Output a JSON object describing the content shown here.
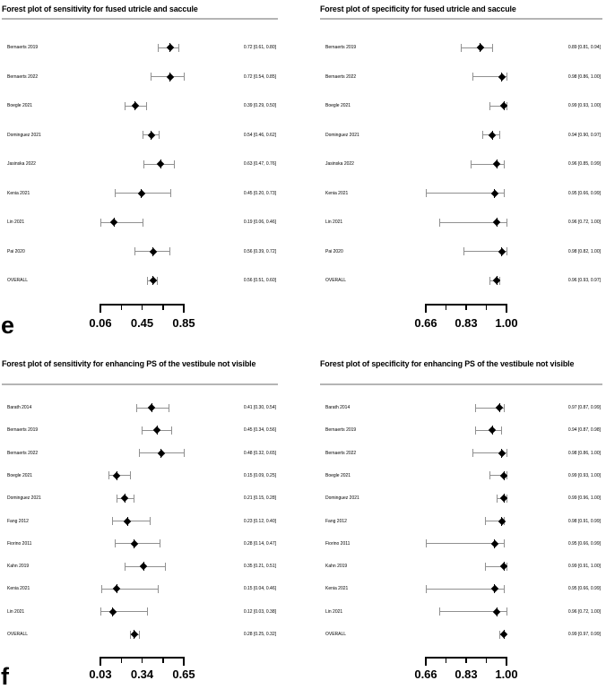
{
  "figure_labels": {
    "top": "e",
    "bottom": "f"
  },
  "colors": {
    "ci_line": "#909090",
    "marker": "#000000",
    "separator": "#b5b5b5",
    "text": "#000000",
    "background": "#ffffff"
  },
  "chart_data": [
    {
      "type": "forest",
      "title": "Forest plot of sensitivity for fused utricle and saccule",
      "subfigure_label": "e",
      "axis": {
        "min": 0.06,
        "max": 0.85,
        "tick_labels": [
          "0.06",
          "0.45",
          "0.85"
        ]
      },
      "studies": [
        {
          "label": "Bernaerts 2019",
          "estimate": 0.72,
          "ci_low": 0.61,
          "ci_high": 0.8,
          "display": "0.72 [0.61, 0.80]"
        },
        {
          "label": "Bernaerts 2022",
          "estimate": 0.72,
          "ci_low": 0.54,
          "ci_high": 0.85,
          "display": "0.72 [0.54, 0.85]"
        },
        {
          "label": "Boegle 2021",
          "estimate": 0.39,
          "ci_low": 0.29,
          "ci_high": 0.5,
          "display": "0.39 [0.29, 0.50]"
        },
        {
          "label": "Dominguez 2021",
          "estimate": 0.54,
          "ci_low": 0.46,
          "ci_high": 0.62,
          "display": "0.54 [0.46, 0.62]"
        },
        {
          "label": "Jasinska 2022",
          "estimate": 0.63,
          "ci_low": 0.47,
          "ci_high": 0.76,
          "display": "0.63 [0.47, 0.76]"
        },
        {
          "label": "Kenia 2021",
          "estimate": 0.45,
          "ci_low": 0.2,
          "ci_high": 0.73,
          "display": "0.45 [0.20, 0.73]"
        },
        {
          "label": "Lin 2021",
          "estimate": 0.19,
          "ci_low": 0.06,
          "ci_high": 0.46,
          "display": "0.19 [0.06, 0.46]"
        },
        {
          "label": "Pai 2020",
          "estimate": 0.56,
          "ci_low": 0.39,
          "ci_high": 0.72,
          "display": "0.56 [0.39, 0.72]"
        },
        {
          "label": "OVERALL",
          "estimate": 0.56,
          "ci_low": 0.51,
          "ci_high": 0.6,
          "display": "0.56 [0.51, 0.60]"
        }
      ]
    },
    {
      "type": "forest",
      "title": "Forest plot of specificity for fused utricle and saccule",
      "subfigure_label": "e",
      "axis": {
        "min": 0.66,
        "max": 1.0,
        "tick_labels": [
          "0.66",
          "0.83",
          "1.00"
        ]
      },
      "studies": [
        {
          "label": "Bernaerts 2019",
          "estimate": 0.89,
          "ci_low": 0.81,
          "ci_high": 0.94,
          "display": "0.89 [0.81, 0.94]"
        },
        {
          "label": "Bernaerts 2022",
          "estimate": 0.98,
          "ci_low": 0.86,
          "ci_high": 1.0,
          "display": "0.98 [0.86, 1.00]"
        },
        {
          "label": "Boegle 2021",
          "estimate": 0.99,
          "ci_low": 0.93,
          "ci_high": 1.0,
          "display": "0.99 [0.93, 1.00]"
        },
        {
          "label": "Dominguez 2021",
          "estimate": 0.94,
          "ci_low": 0.9,
          "ci_high": 0.97,
          "display": "0.94 [0.90, 0.97]"
        },
        {
          "label": "Jasinska 2022",
          "estimate": 0.96,
          "ci_low": 0.85,
          "ci_high": 0.99,
          "display": "0.96 [0.85, 0.99]"
        },
        {
          "label": "Kenia 2021",
          "estimate": 0.95,
          "ci_low": 0.66,
          "ci_high": 0.99,
          "display": "0.95 [0.66, 0.99]"
        },
        {
          "label": "Lin 2021",
          "estimate": 0.96,
          "ci_low": 0.72,
          "ci_high": 1.0,
          "display": "0.96 [0.72, 1.00]"
        },
        {
          "label": "Pai 2020",
          "estimate": 0.98,
          "ci_low": 0.82,
          "ci_high": 1.0,
          "display": "0.98 [0.82, 1.00]"
        },
        {
          "label": "OVERALL",
          "estimate": 0.96,
          "ci_low": 0.93,
          "ci_high": 0.97,
          "display": "0.96 [0.93, 0.97]"
        }
      ]
    },
    {
      "type": "forest",
      "title": "Forest plot of sensitivity for enhancing PS of the vestibule not visible",
      "subfigure_label": "f",
      "axis": {
        "min": 0.03,
        "max": 0.65,
        "tick_labels": [
          "0.03",
          "0.34",
          "0.65"
        ]
      },
      "studies": [
        {
          "label": "Barath 2014",
          "estimate": 0.41,
          "ci_low": 0.3,
          "ci_high": 0.54,
          "display": "0.41 [0.30, 0.54]"
        },
        {
          "label": "Bernaerts 2019",
          "estimate": 0.45,
          "ci_low": 0.34,
          "ci_high": 0.56,
          "display": "0.45 [0.34, 0.56]"
        },
        {
          "label": "Bernaerts 2022",
          "estimate": 0.48,
          "ci_low": 0.32,
          "ci_high": 0.65,
          "display": "0.48 [0.32, 0.65]"
        },
        {
          "label": "Boegle 2021",
          "estimate": 0.15,
          "ci_low": 0.09,
          "ci_high": 0.25,
          "display": "0.15 [0.09, 0.25]"
        },
        {
          "label": "Dominguez 2021",
          "estimate": 0.21,
          "ci_low": 0.15,
          "ci_high": 0.28,
          "display": "0.21 [0.15, 0.28]"
        },
        {
          "label": "Fang 2012",
          "estimate": 0.23,
          "ci_low": 0.12,
          "ci_high": 0.4,
          "display": "0.23 [0.12, 0.40]"
        },
        {
          "label": "Fiorino 2011",
          "estimate": 0.28,
          "ci_low": 0.14,
          "ci_high": 0.47,
          "display": "0.28 [0.14, 0.47]"
        },
        {
          "label": "Kahn 2019",
          "estimate": 0.35,
          "ci_low": 0.21,
          "ci_high": 0.51,
          "display": "0.35 [0.21, 0.51]"
        },
        {
          "label": "Kenia 2021",
          "estimate": 0.15,
          "ci_low": 0.04,
          "ci_high": 0.46,
          "display": "0.15 [0.04, 0.46]"
        },
        {
          "label": "Lin 2021",
          "estimate": 0.12,
          "ci_low": 0.03,
          "ci_high": 0.38,
          "display": "0.12 [0.03, 0.38]"
        },
        {
          "label": "OVERALL",
          "estimate": 0.28,
          "ci_low": 0.25,
          "ci_high": 0.32,
          "display": "0.28 [0.25, 0.32]"
        }
      ]
    },
    {
      "type": "forest",
      "title": "Forest plot of specificity for enhancing PS of the vestibule not visible",
      "subfigure_label": "f",
      "axis": {
        "min": 0.66,
        "max": 1.0,
        "tick_labels": [
          "0.66",
          "0.83",
          "1.00"
        ]
      },
      "studies": [
        {
          "label": "Barath 2014",
          "estimate": 0.97,
          "ci_low": 0.87,
          "ci_high": 0.99,
          "display": "0.97 [0.87, 0.99]"
        },
        {
          "label": "Bernaerts 2019",
          "estimate": 0.94,
          "ci_low": 0.87,
          "ci_high": 0.98,
          "display": "0.94 [0.87, 0.98]"
        },
        {
          "label": "Bernaerts 2022",
          "estimate": 0.98,
          "ci_low": 0.86,
          "ci_high": 1.0,
          "display": "0.98 [0.86, 1.00]"
        },
        {
          "label": "Boegle 2021",
          "estimate": 0.99,
          "ci_low": 0.93,
          "ci_high": 1.0,
          "display": "0.99 [0.93, 1.00]"
        },
        {
          "label": "Dominguez 2021",
          "estimate": 0.99,
          "ci_low": 0.96,
          "ci_high": 1.0,
          "display": "0.99 [0.96, 1.00]"
        },
        {
          "label": "Fang 2012",
          "estimate": 0.98,
          "ci_low": 0.91,
          "ci_high": 0.99,
          "display": "0.98 [0.91, 0.99]"
        },
        {
          "label": "Fiorino 2011",
          "estimate": 0.95,
          "ci_low": 0.66,
          "ci_high": 0.99,
          "display": "0.95 [0.66, 0.99]"
        },
        {
          "label": "Kahn 2019",
          "estimate": 0.99,
          "ci_low": 0.91,
          "ci_high": 1.0,
          "display": "0.99 [0.91, 1.00]"
        },
        {
          "label": "Kenia 2021",
          "estimate": 0.95,
          "ci_low": 0.66,
          "ci_high": 0.99,
          "display": "0.95 [0.66, 0.99]"
        },
        {
          "label": "Lin 2021",
          "estimate": 0.96,
          "ci_low": 0.72,
          "ci_high": 1.0,
          "display": "0.96 [0.72, 1.00]"
        },
        {
          "label": "OVERALL",
          "estimate": 0.99,
          "ci_low": 0.97,
          "ci_high": 0.99,
          "display": "0.99 [0.97, 0.99]"
        }
      ]
    }
  ]
}
